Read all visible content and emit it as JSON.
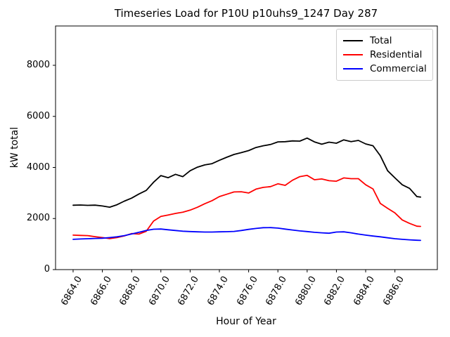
{
  "chart_data": {
    "type": "line",
    "title": "Timeseries Load for P10U p10uhs9_1247  Day 287",
    "xlabel": "Hour of Year",
    "ylabel": "kW total",
    "xlim": [
      6862.8,
      6888.9
    ],
    "ylim": [
      0,
      9540
    ],
    "grid": false,
    "legend_position": "upper right",
    "x_ticks": [
      6864,
      6866,
      6868,
      6870,
      6872,
      6874,
      6876,
      6878,
      6880,
      6882,
      6884,
      6886
    ],
    "x_tick_labels": [
      "6864.0",
      "6866.0",
      "6868.0",
      "6870.0",
      "6872.0",
      "6874.0",
      "6876.0",
      "6878.0",
      "6880.0",
      "6882.0",
      "6884.0",
      "6886.0"
    ],
    "y_ticks": [
      0,
      2000,
      4000,
      6000,
      8000
    ],
    "y_tick_labels": [
      "0",
      "2000",
      "4000",
      "6000",
      "8000"
    ],
    "x": [
      6864,
      6864.5,
      6865,
      6865.5,
      6866,
      6866.5,
      6867,
      6867.5,
      6868,
      6868.5,
      6869,
      6869.5,
      6870,
      6870.5,
      6871,
      6871.5,
      6872,
      6872.5,
      6873,
      6873.5,
      6874,
      6874.5,
      6875,
      6875.5,
      6876,
      6876.5,
      6877,
      6877.5,
      6878,
      6878.5,
      6879,
      6879.5,
      6880,
      6880.5,
      6881,
      6881.5,
      6882,
      6882.5,
      6883,
      6883.5,
      6884,
      6884.5,
      6885,
      6885.5,
      6886,
      6886.5,
      6887,
      6887.5,
      6887.75
    ],
    "series": [
      {
        "name": "Total",
        "color": "#000000",
        "values": [
          2520,
          2530,
          2515,
          2525,
          2490,
          2445,
          2540,
          2680,
          2800,
          2960,
          3100,
          3420,
          3680,
          3600,
          3730,
          3640,
          3870,
          4010,
          4100,
          4150,
          4280,
          4400,
          4510,
          4580,
          4660,
          4780,
          4850,
          4900,
          5000,
          5010,
          5040,
          5030,
          5150,
          5000,
          4910,
          4990,
          4950,
          5080,
          5010,
          5060,
          4920,
          4850,
          4460,
          3870,
          3590,
          3320,
          3180,
          2860,
          2840
        ]
      },
      {
        "name": "Residential",
        "color": "#ff0000",
        "values": [
          1350,
          1340,
          1330,
          1290,
          1255,
          1215,
          1255,
          1320,
          1410,
          1390,
          1500,
          1900,
          2080,
          2140,
          2200,
          2250,
          2330,
          2440,
          2580,
          2700,
          2860,
          2950,
          3040,
          3050,
          3000,
          3150,
          3220,
          3250,
          3360,
          3300,
          3500,
          3640,
          3690,
          3520,
          3550,
          3480,
          3460,
          3590,
          3560,
          3560,
          3320,
          3160,
          2590,
          2400,
          2220,
          1945,
          1810,
          1700,
          1690
        ]
      },
      {
        "name": "Commercial",
        "color": "#0000ff",
        "values": [
          1185,
          1200,
          1210,
          1220,
          1230,
          1255,
          1285,
          1330,
          1395,
          1460,
          1530,
          1580,
          1590,
          1560,
          1530,
          1505,
          1490,
          1480,
          1470,
          1470,
          1480,
          1485,
          1495,
          1530,
          1575,
          1610,
          1640,
          1645,
          1625,
          1585,
          1550,
          1515,
          1490,
          1460,
          1440,
          1425,
          1470,
          1480,
          1440,
          1390,
          1350,
          1315,
          1285,
          1245,
          1210,
          1185,
          1165,
          1150,
          1145
        ]
      }
    ]
  },
  "layout_colors": {
    "spine": "#000000",
    "background": "#ffffff",
    "legend_border": "#cccccc"
  }
}
